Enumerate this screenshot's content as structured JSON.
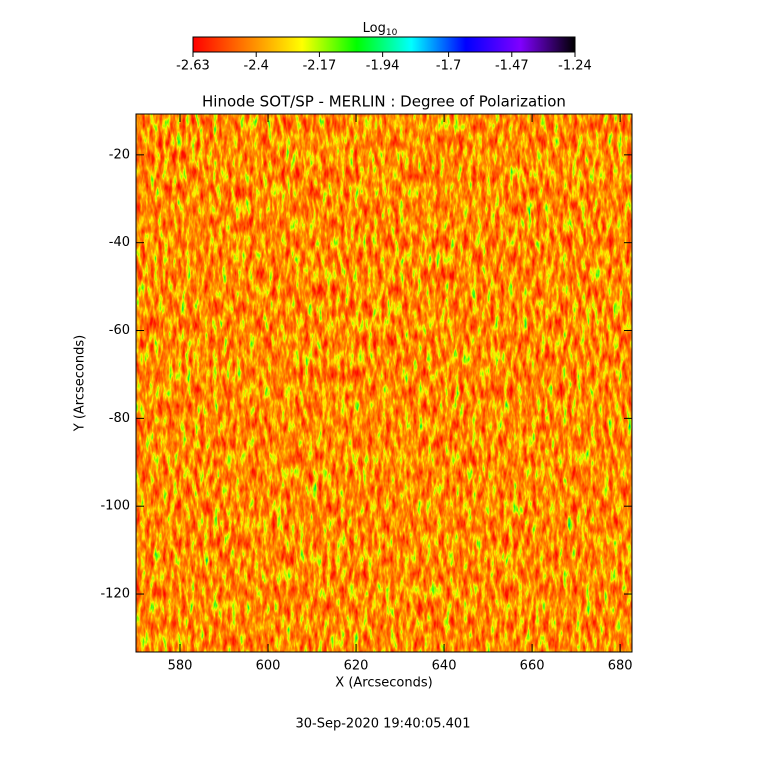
{
  "chart_data": {
    "type": "heatmap",
    "title": "Hinode SOT/SP - MERLIN : Degree of Polarization",
    "x_label": "X (Arcseconds)",
    "y_label": "Y (Arcseconds)",
    "footer": "30-Sep-2020 19:40:05.401",
    "xlim": [
      570,
      682.7
    ],
    "ylim": [
      -133.2,
      -10.7
    ],
    "xticks": [
      580,
      600,
      620,
      640,
      660,
      680
    ],
    "yticks": [
      -20,
      -40,
      -60,
      -80,
      -100,
      -120
    ],
    "colorbar": {
      "label": "Log",
      "label_subscript": "10",
      "lim": [
        -2.63,
        -1.24
      ],
      "ticks": [
        -2.63,
        -2.4,
        -2.17,
        -1.94,
        -1.7,
        -1.47,
        -1.24
      ],
      "colors": [
        "#ff0000",
        "#ff8000",
        "#ffff00",
        "#00ff00",
        "#00ffff",
        "#0000ff",
        "#8000ff",
        "#000000"
      ]
    }
  }
}
